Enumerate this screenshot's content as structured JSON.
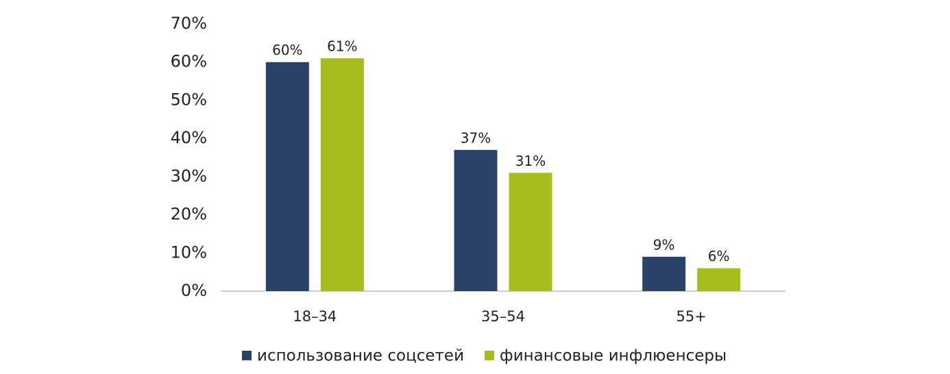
{
  "chart_data": {
    "type": "bar",
    "categories": [
      "18–34",
      "35–54",
      "55+"
    ],
    "series": [
      {
        "name": "использование соцсетей",
        "color": "#2a4268",
        "values": [
          60,
          37,
          9
        ],
        "value_labels": [
          "60%",
          "37%",
          "9%"
        ]
      },
      {
        "name": "финансовые инфлюенсеры",
        "color": "#a6bd1d",
        "values": [
          61,
          31,
          6
        ],
        "value_labels": [
          "61%",
          "31%",
          "6%"
        ]
      }
    ],
    "ylim": [
      0,
      70
    ],
    "yticks": [
      {
        "value": 0,
        "label": "0%"
      },
      {
        "value": 10,
        "label": "10%"
      },
      {
        "value": 20,
        "label": "20%"
      },
      {
        "value": 30,
        "label": "30%"
      },
      {
        "value": 40,
        "label": "40%"
      },
      {
        "value": 50,
        "label": "50%"
      },
      {
        "value": 60,
        "label": "60%"
      },
      {
        "value": 70,
        "label": "70%"
      }
    ],
    "grid": false,
    "legend": "bottom"
  }
}
